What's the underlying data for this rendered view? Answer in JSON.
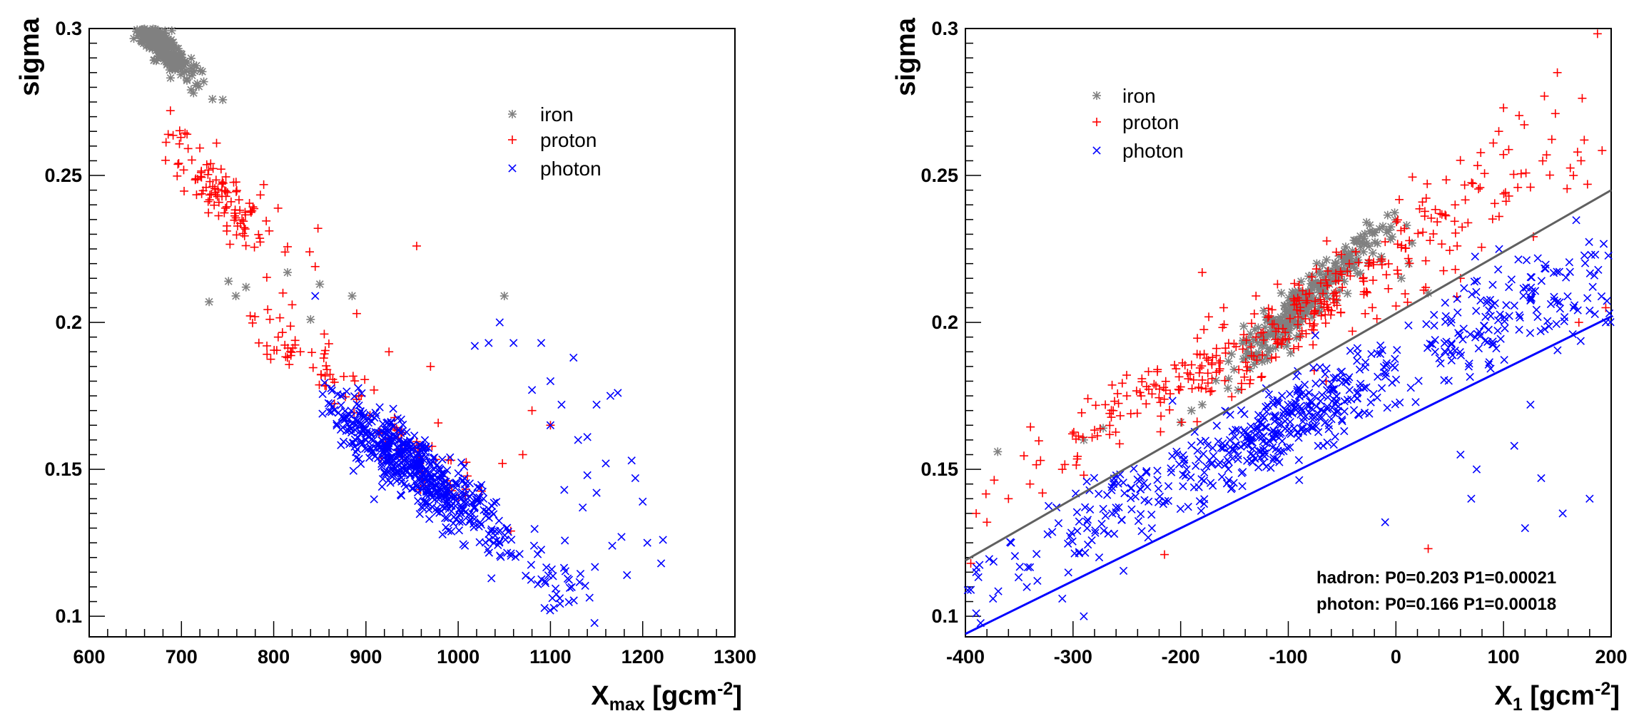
{
  "colors": {
    "iron": "#808080",
    "proton": "#ff0000",
    "photon": "#0000ff",
    "fit_hadron": "#606060",
    "fit_photon": "#0000ff"
  },
  "chart_data": [
    {
      "type": "scatter",
      "xlabel": {
        "main": "X",
        "sub": "max",
        "rest": " [gcm",
        "sup": "-2",
        "end": "]"
      },
      "ylabel": "sigma",
      "xlim": [
        600,
        1300
      ],
      "ylim": [
        0.093,
        0.3
      ],
      "xticks": [
        600,
        700,
        800,
        900,
        1000,
        1100,
        1200,
        1300
      ],
      "xtick_labels": [
        "600",
        "700",
        "800",
        "900",
        "1000",
        "1100",
        "1200",
        "1300"
      ],
      "yticks": [
        0.1,
        0.15,
        0.2,
        0.25,
        0.3
      ],
      "ytick_labels": [
        "0.1",
        "0.15",
        "0.2",
        "0.25",
        "0.3"
      ],
      "legend": {
        "position": "top-right",
        "entries": [
          "iron",
          "proton",
          "photon"
        ]
      },
      "series": [
        {
          "name": "iron",
          "marker": "star",
          "clusters": [
            {
              "n": 360,
              "cx": 675,
              "sx": 18,
              "cy_at": [
                0.2235,
                -0.00032
              ],
              "sy": 0.0028,
              "xmin": 640,
              "xmax": 745
            }
          ],
          "points": [
            [
              751,
              0.214
            ],
            [
              759,
              0.209
            ],
            [
              815,
              0.217
            ],
            [
              850,
              0.213
            ],
            [
              840,
              0.201
            ],
            [
              885,
              0.209
            ],
            [
              1050,
              0.209
            ],
            [
              730,
              0.207
            ],
            [
              770,
              0.212
            ]
          ]
        },
        {
          "name": "proton",
          "marker": "plus",
          "clusters": [
            {
              "n": 110,
              "cx": 745,
              "sx": 35,
              "cy_at": [
                0.2,
                -0.00028
              ],
              "sy": 0.0065,
              "xmin": 680,
              "xmax": 830
            },
            {
              "n": 55,
              "cx": 835,
              "sx": 38,
              "cy_at": [
                0.174,
                -0.0002
              ],
              "sy": 0.005,
              "xmin": 770,
              "xmax": 900
            },
            {
              "n": 45,
              "cx": 960,
              "sx": 40,
              "cy_at": [
                0.166,
                -0.0002
              ],
              "sy": 0.0055,
              "xmin": 900,
              "xmax": 1030
            }
          ],
          "points": [
            [
              848,
              0.232
            ],
            [
              955,
              0.226
            ],
            [
              839,
              0.224
            ],
            [
              845,
              0.219
            ],
            [
              810,
              0.21
            ],
            [
              820,
              0.206
            ],
            [
              890,
              0.203
            ],
            [
              1057,
              0.129
            ],
            [
              1100,
              0.165
            ],
            [
              1080,
              0.17
            ],
            [
              970,
              0.185
            ],
            [
              925,
              0.19
            ],
            [
              1048,
              0.152
            ],
            [
              1070,
              0.155
            ]
          ]
        },
        {
          "name": "photon",
          "marker": "x",
          "clusters": [
            {
              "n": 560,
              "cx": 950,
              "sx": 50,
              "cy_at": [
                0.1625,
                -0.00023
              ],
              "sy": 0.0055,
              "xmin": 850,
              "xmax": 1060
            },
            {
              "n": 45,
              "cx": 1090,
              "sx": 32,
              "cy_at": [
                0.153,
                -0.0002
              ],
              "sy": 0.008,
              "xmin": 1040,
              "xmax": 1150
            }
          ],
          "points": [
            [
              1183,
              0.114
            ],
            [
              1205,
              0.125
            ],
            [
              1222,
              0.126
            ],
            [
              1220,
              0.118
            ],
            [
              1177,
              0.127
            ],
            [
              1167,
              0.124
            ],
            [
              1188,
              0.153
            ],
            [
              1192,
              0.147
            ],
            [
              1200,
              0.139
            ],
            [
              1165,
              0.175
            ],
            [
              1173,
              0.176
            ],
            [
              1150,
              0.172
            ],
            [
              1140,
              0.161
            ],
            [
              1125,
              0.188
            ],
            [
              1090,
              0.193
            ],
            [
              1060,
              0.193
            ],
            [
              1045,
              0.2
            ],
            [
              1033,
              0.193
            ],
            [
              1018,
              0.192
            ],
            [
              845,
              0.209
            ],
            [
              1100,
              0.18
            ],
            [
              1112,
              0.172
            ],
            [
              1130,
              0.16
            ],
            [
              1135,
              0.137
            ],
            [
              1150,
              0.142
            ],
            [
              1115,
              0.143
            ],
            [
              1140,
              0.148
            ],
            [
              1160,
              0.152
            ],
            [
              1100,
              0.165
            ],
            [
              1080,
              0.177
            ]
          ]
        }
      ]
    },
    {
      "type": "scatter",
      "xlabel": {
        "main": "X",
        "sub": "1",
        "rest": " [gcm",
        "sup": "-2",
        "end": "]"
      },
      "ylabel": "sigma",
      "xlim": [
        -400,
        200
      ],
      "ylim": [
        0.093,
        0.3
      ],
      "xticks": [
        -400,
        -300,
        -200,
        -100,
        0,
        100,
        200
      ],
      "xtick_labels": [
        "-400",
        "-300",
        "-200",
        "-100",
        "0",
        "100",
        "200"
      ],
      "yticks": [
        0.1,
        0.15,
        0.2,
        0.25,
        0.3
      ],
      "ytick_labels": [
        "0.1",
        "0.15",
        "0.2",
        "0.25",
        "0.3"
      ],
      "legend": {
        "position": "top-left",
        "entries": [
          "iron",
          "proton",
          "photon"
        ]
      },
      "annotations": [
        "hadron: P0=0.203 P1=0.00021",
        "photon: P0=0.166 P1=0.00018"
      ],
      "fits": [
        {
          "series": "hadron",
          "p0": 0.203,
          "p1": 0.00021,
          "x_range": [
            -400,
            200
          ]
        },
        {
          "series": "photon",
          "p0": 0.166,
          "p1": 0.00018,
          "x_range": [
            -400,
            200
          ]
        }
      ],
      "series": [
        {
          "name": "iron",
          "marker": "star",
          "clusters": [
            {
              "n": 330,
              "cx": -85,
              "sx": 38,
              "cy_at": [
                0.2015,
                0.00033
              ],
              "sy": 0.0038,
              "xmin": -170,
              "xmax": 0
            }
          ],
          "points": [
            [
              -370,
              0.156
            ],
            [
              -290,
              0.16
            ],
            [
              -272,
              0.164
            ],
            [
              10,
              0.233
            ],
            [
              15,
              0.227
            ],
            [
              -180,
              0.172
            ],
            [
              -190,
              0.17
            ],
            [
              5,
              0.215
            ],
            [
              -200,
              0.166
            ],
            [
              12,
              0.22
            ],
            [
              30,
              0.21
            ]
          ]
        },
        {
          "name": "proton",
          "marker": "plus",
          "clusters": [
            {
              "n": 100,
              "cx": -235,
              "sx": 55,
              "cy_at": [
                0.203,
                0.00021
              ],
              "sy": 0.006,
              "xmin": -400,
              "xmax": -120
            },
            {
              "n": 200,
              "cx": -70,
              "sx": 70,
              "cy_at": [
                0.2,
                0.0002
              ],
              "sy": 0.008,
              "xmin": -200,
              "xmax": 60
            },
            {
              "n": 60,
              "cx": 100,
              "sx": 55,
              "cy_at": [
                0.205,
                0.00022
              ],
              "sy": 0.011,
              "xmin": 0,
              "xmax": 200
            }
          ],
          "points": [
            [
              150,
              0.285
            ],
            [
              138,
              0.277
            ],
            [
              100,
              0.273
            ],
            [
              140,
              0.257
            ],
            [
              172,
              0.255
            ],
            [
              178,
              0.247
            ],
            [
              165,
              0.25
            ],
            [
              125,
              0.246
            ],
            [
              105,
              0.243
            ],
            [
              -110,
              0.213
            ],
            [
              -130,
              0.209
            ],
            [
              -250,
              0.175
            ],
            [
              -270,
              0.172
            ],
            [
              -390,
              0.135
            ],
            [
              -360,
              0.14
            ],
            [
              -395,
              0.118
            ],
            [
              -380,
              0.132
            ],
            [
              -340,
              0.145
            ],
            [
              -310,
              0.15
            ],
            [
              -290,
              0.148
            ],
            [
              30,
              0.123
            ],
            [
              -215,
              0.121
            ],
            [
              55,
              0.24
            ],
            [
              60,
              0.215
            ],
            [
              170,
              0.2
            ],
            [
              195,
              0.205
            ],
            [
              -180,
              0.217
            ],
            [
              -95,
              0.208
            ],
            [
              -160,
              0.205
            ]
          ]
        },
        {
          "name": "photon",
          "marker": "x",
          "clusters": [
            {
              "n": 130,
              "cx": -260,
              "sx": 60,
              "cy_at": [
                0.164,
                0.00018
              ],
              "sy": 0.0075,
              "xmin": -400,
              "xmax": -170
            },
            {
              "n": 330,
              "cx": -95,
              "sx": 55,
              "cy_at": [
                0.166,
                0.00018
              ],
              "sy": 0.007,
              "xmin": -200,
              "xmax": 0
            },
            {
              "n": 160,
              "cx": 100,
              "sx": 55,
              "cy_at": [
                0.168,
                0.00018
              ],
              "sy": 0.009,
              "xmin": 0,
              "xmax": 200
            }
          ],
          "points": [
            [
              -290,
              0.1
            ],
            [
              -390,
              0.101
            ],
            [
              -395,
              0.109
            ],
            [
              -390,
              0.115
            ],
            [
              -310,
              0.106
            ],
            [
              95,
              0.218
            ],
            [
              105,
              0.212
            ],
            [
              150,
              0.207
            ],
            [
              165,
              0.205
            ],
            [
              180,
              0.204
            ],
            [
              195,
              0.2
            ],
            [
              70,
              0.14
            ],
            [
              120,
              0.13
            ],
            [
              155,
              0.135
            ],
            [
              180,
              0.14
            ],
            [
              135,
              0.147
            ],
            [
              -10,
              0.132
            ],
            [
              75,
              0.15
            ],
            [
              125,
              0.172
            ],
            [
              110,
              0.158
            ],
            [
              60,
              0.155
            ]
          ]
        }
      ]
    }
  ]
}
